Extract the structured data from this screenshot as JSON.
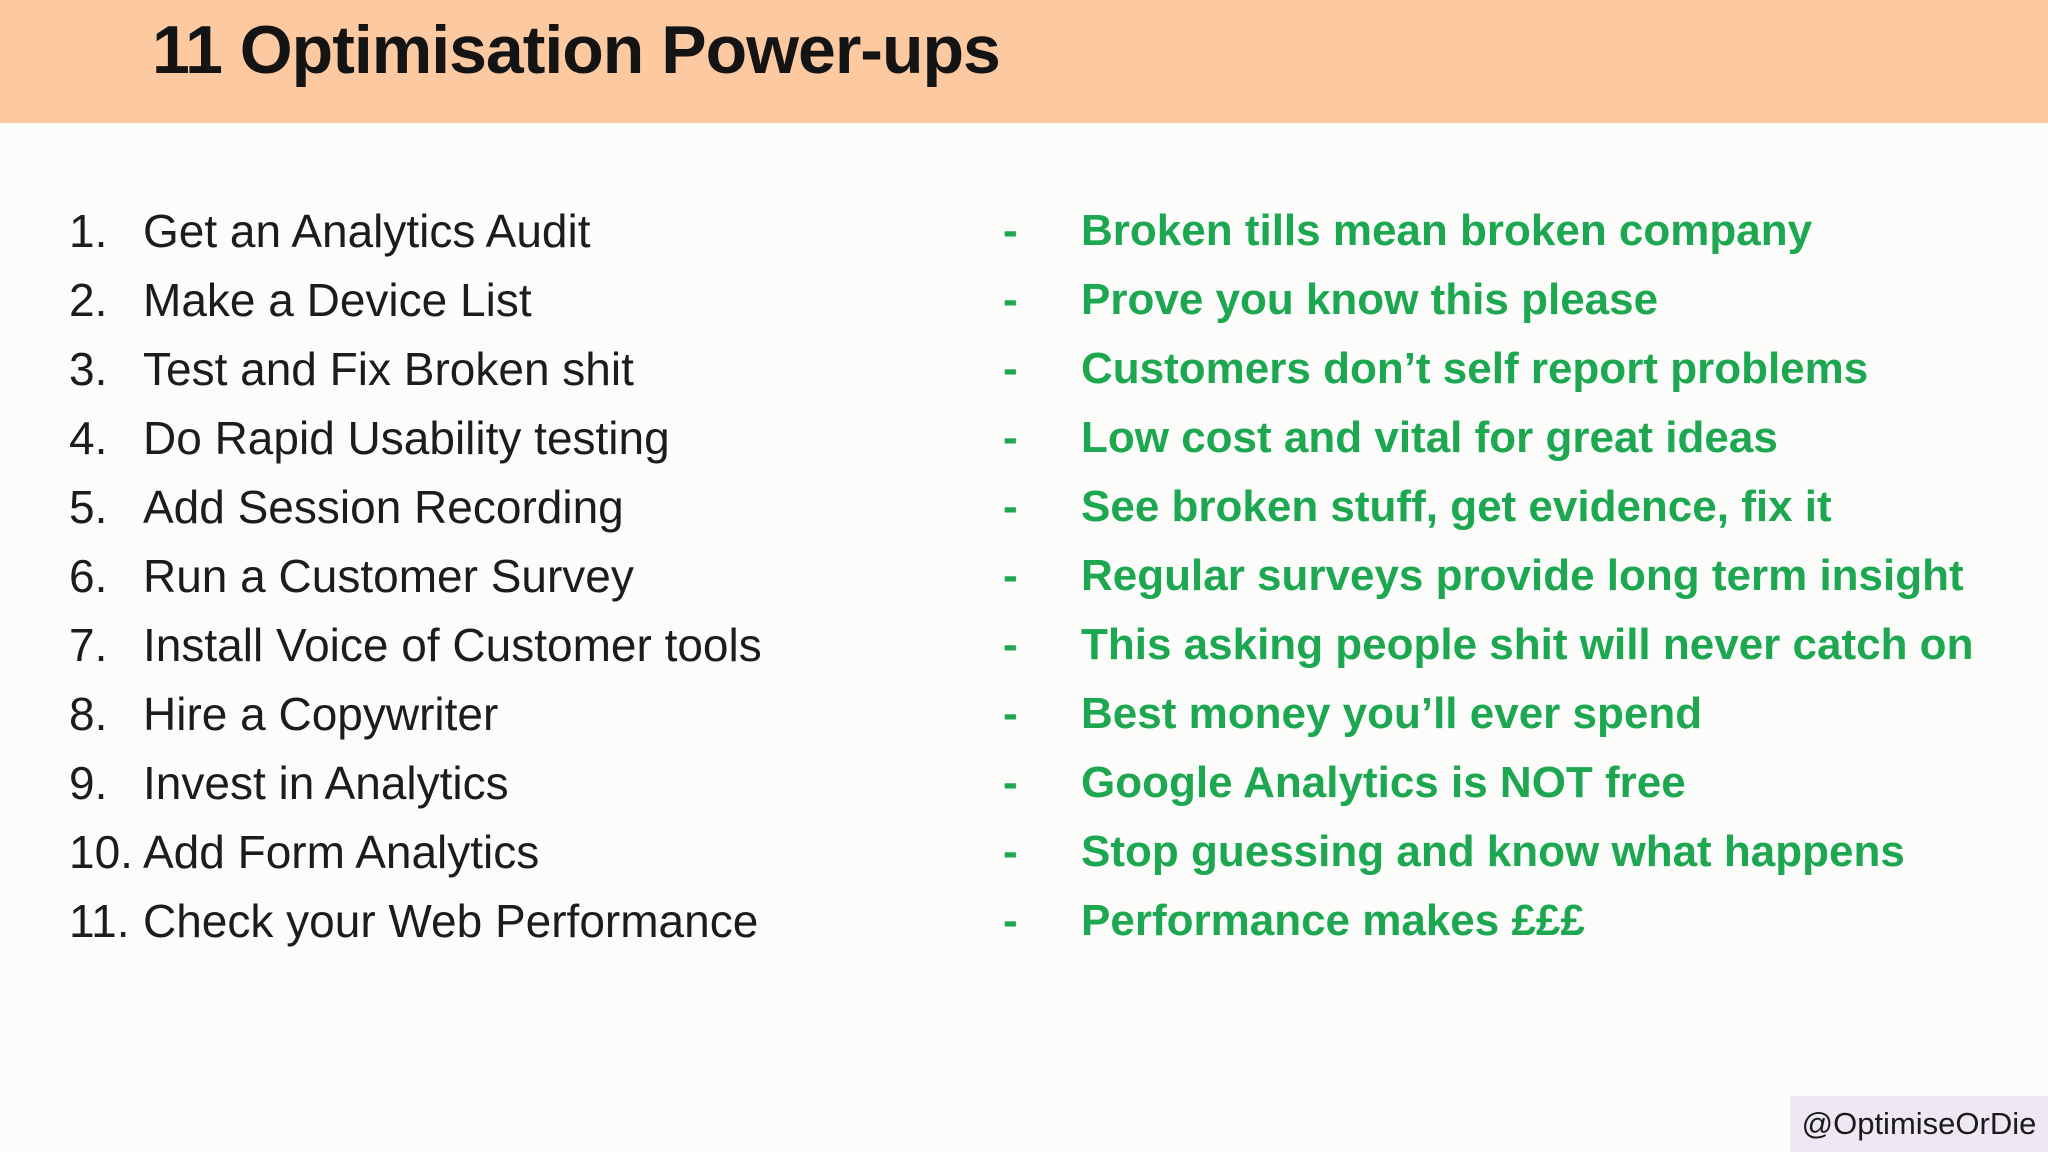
{
  "slide": {
    "title": "11 Optimisation Power-ups",
    "dash": "-",
    "items": [
      {
        "num": "1.",
        "label": "Get an Analytics Audit",
        "note": "Broken tills mean broken company"
      },
      {
        "num": "2.",
        "label": "Make a Device List",
        "note": "Prove you know this please"
      },
      {
        "num": "3.",
        "label": "Test and Fix Broken shit",
        "note": "Customers don’t self report problems"
      },
      {
        "num": "4.",
        "label": "Do Rapid Usability testing",
        "note": "Low cost and vital for great ideas"
      },
      {
        "num": "5.",
        "label": "Add Session Recording",
        "note": "See broken stuff, get evidence, fix it"
      },
      {
        "num": "6.",
        "label": "Run a Customer Survey",
        "note": "Regular surveys provide long term insight"
      },
      {
        "num": "7.",
        "label": "Install Voice of Customer tools",
        "note": "This asking people shit will never catch on"
      },
      {
        "num": "8.",
        "label": "Hire a Copywriter",
        "note": "Best money you’ll ever spend"
      },
      {
        "num": "9.",
        "label": "Invest in Analytics",
        "note": "Google Analytics is NOT free"
      },
      {
        "num": "10.",
        "label": "Add Form Analytics",
        "note": "Stop guessing and know what happens"
      },
      {
        "num": "11.",
        "label": "Check your Web Performance",
        "note": "Performance makes £££"
      }
    ],
    "watermark": "@OptimiseOrDie",
    "colors": {
      "header_bg": "#fcc9a1",
      "note_green": "#1ca750",
      "watermark_bg": "#ede8f3",
      "body_text": "#1c1c1c",
      "page_bg": "#fcfcfb"
    }
  }
}
